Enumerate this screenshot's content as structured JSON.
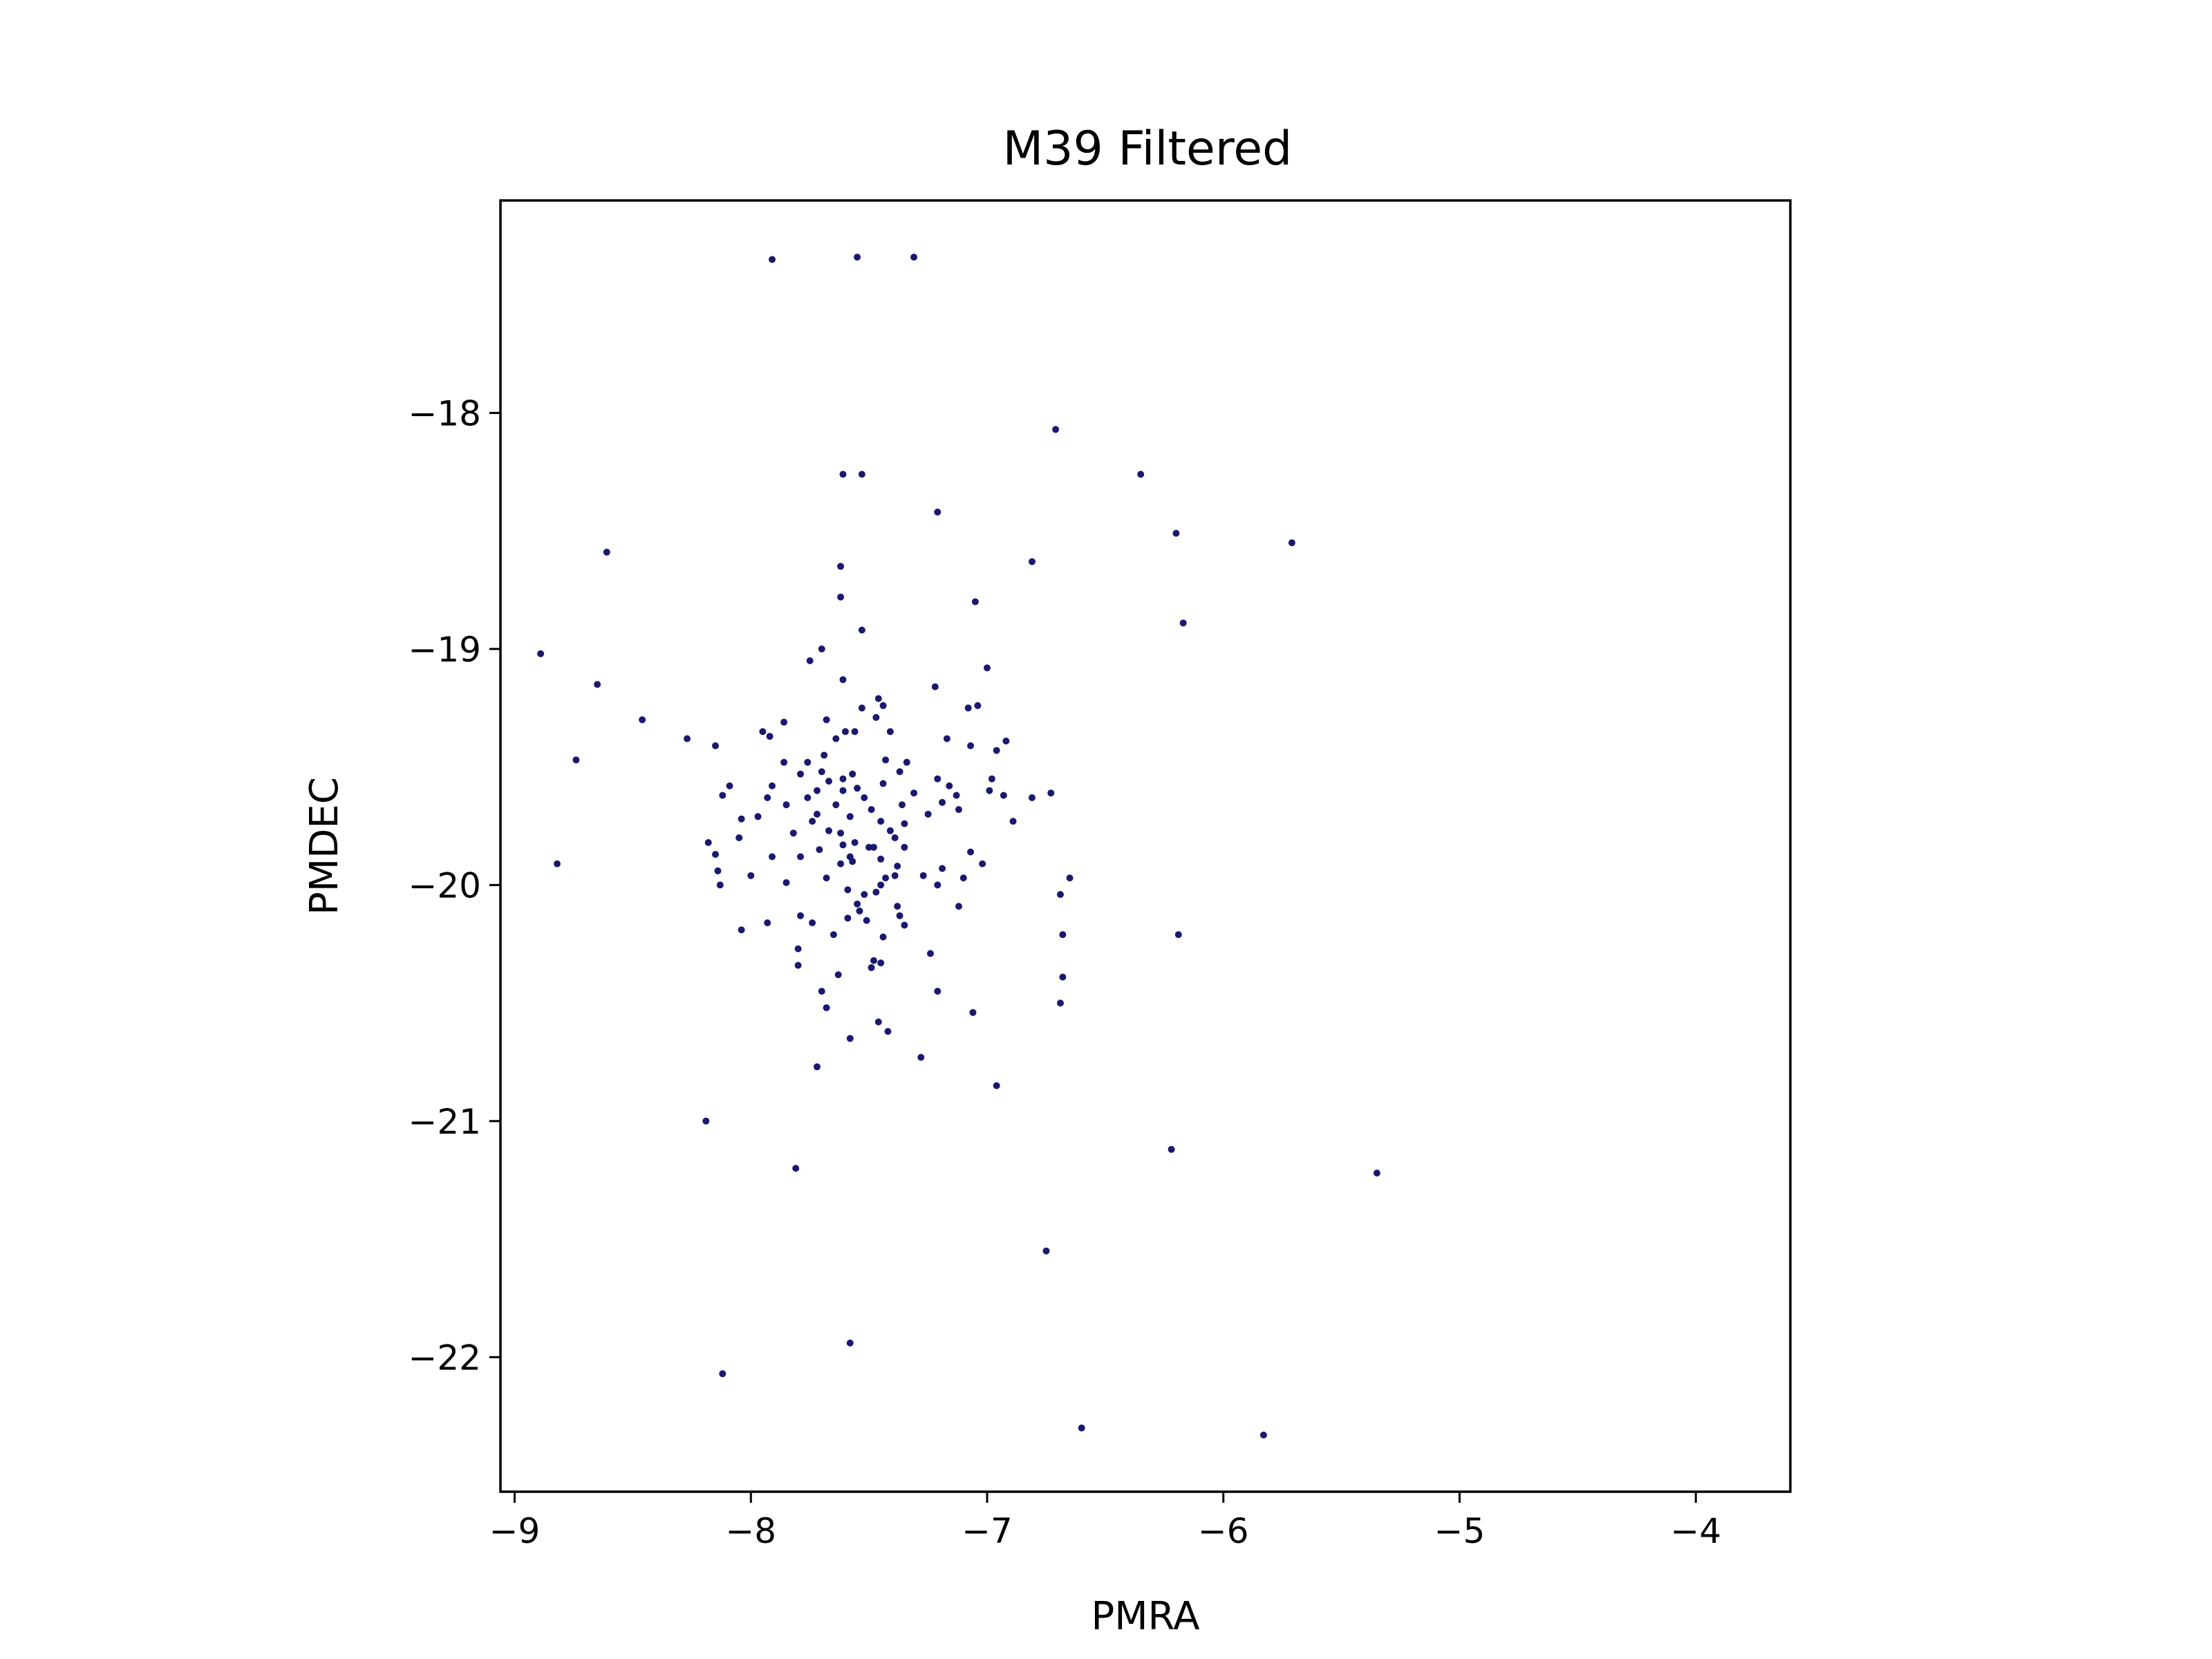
{
  "chart_data": {
    "type": "scatter",
    "title": "M39 Filtered",
    "xlabel": "PMRA",
    "ylabel": "PMDEC",
    "xlim": [
      -9.06,
      -3.6
    ],
    "ylim": [
      -22.57,
      -17.1
    ],
    "xticks": [
      -9,
      -8,
      -7,
      -6,
      -5,
      -4
    ],
    "yticks": [
      -18,
      -19,
      -20,
      -21,
      -22
    ],
    "xtick_labels": [
      "−9",
      "−8",
      "−7",
      "−6",
      "−5",
      "−4"
    ],
    "ytick_labels": [
      "−18",
      "−19",
      "−20",
      "−21",
      "−22"
    ],
    "grid": false,
    "marker_color": "#191970",
    "points": [
      [
        -7.91,
        -17.35
      ],
      [
        -7.55,
        -17.34
      ],
      [
        -7.31,
        -17.34
      ],
      [
        -6.71,
        -18.07
      ],
      [
        -6.35,
        -18.26
      ],
      [
        -7.61,
        -18.26
      ],
      [
        -7.53,
        -18.26
      ],
      [
        -7.21,
        -18.42
      ],
      [
        -6.2,
        -18.51
      ],
      [
        -5.71,
        -18.55
      ],
      [
        -8.61,
        -18.59
      ],
      [
        -6.81,
        -18.63
      ],
      [
        -7.62,
        -18.65
      ],
      [
        -7.62,
        -18.78
      ],
      [
        -7.05,
        -18.8
      ],
      [
        -6.17,
        -18.89
      ],
      [
        -7.53,
        -18.92
      ],
      [
        -8.89,
        -19.02
      ],
      [
        -7.7,
        -19.0
      ],
      [
        -7.75,
        -19.05
      ],
      [
        -7.0,
        -19.08
      ],
      [
        -7.61,
        -19.13
      ],
      [
        -8.65,
        -19.15
      ],
      [
        -7.22,
        -19.16
      ],
      [
        -7.46,
        -19.21
      ],
      [
        -7.08,
        -19.25
      ],
      [
        -7.04,
        -19.24
      ],
      [
        -7.53,
        -19.25
      ],
      [
        -7.44,
        -19.24
      ],
      [
        -8.46,
        -19.3
      ],
      [
        -7.68,
        -19.3
      ],
      [
        -7.47,
        -19.29
      ],
      [
        -7.86,
        -19.31
      ],
      [
        -7.6,
        -19.35
      ],
      [
        -7.95,
        -19.35
      ],
      [
        -7.56,
        -19.35
      ],
      [
        -7.41,
        -19.35
      ],
      [
        -8.27,
        -19.38
      ],
      [
        -7.92,
        -19.37
      ],
      [
        -7.64,
        -19.38
      ],
      [
        -6.92,
        -19.39
      ],
      [
        -7.17,
        -19.38
      ],
      [
        -8.15,
        -19.41
      ],
      [
        -7.07,
        -19.41
      ],
      [
        -7.69,
        -19.45
      ],
      [
        -8.74,
        -19.47
      ],
      [
        -6.96,
        -19.43
      ],
      [
        -7.34,
        -19.48
      ],
      [
        -7.43,
        -19.47
      ],
      [
        -7.76,
        -19.48
      ],
      [
        -7.86,
        -19.48
      ],
      [
        -7.37,
        -19.52
      ],
      [
        -7.7,
        -19.52
      ],
      [
        -7.57,
        -19.53
      ],
      [
        -7.79,
        -19.53
      ],
      [
        -7.61,
        -19.55
      ],
      [
        -7.21,
        -19.55
      ],
      [
        -6.98,
        -19.55
      ],
      [
        -7.44,
        -19.57
      ],
      [
        -7.67,
        -19.56
      ],
      [
        -7.91,
        -19.58
      ],
      [
        -7.16,
        -19.58
      ],
      [
        -8.09,
        -19.58
      ],
      [
        -7.55,
        -19.59
      ],
      [
        -7.72,
        -19.6
      ],
      [
        -7.61,
        -19.6
      ],
      [
        -6.99,
        -19.6
      ],
      [
        -6.93,
        -19.62
      ],
      [
        -7.13,
        -19.62
      ],
      [
        -8.12,
        -19.62
      ],
      [
        -7.31,
        -19.61
      ],
      [
        -7.76,
        -19.63
      ],
      [
        -6.73,
        -19.61
      ],
      [
        -7.52,
        -19.63
      ],
      [
        -7.93,
        -19.63
      ],
      [
        -6.81,
        -19.63
      ],
      [
        -7.19,
        -19.65
      ],
      [
        -7.64,
        -19.66
      ],
      [
        -7.85,
        -19.66
      ],
      [
        -7.36,
        -19.66
      ],
      [
        -7.49,
        -19.68
      ],
      [
        -7.12,
        -19.68
      ],
      [
        -7.25,
        -19.7
      ],
      [
        -7.72,
        -19.7
      ],
      [
        -7.58,
        -19.71
      ],
      [
        -7.97,
        -19.71
      ],
      [
        -8.04,
        -19.72
      ],
      [
        -6.89,
        -19.73
      ],
      [
        -7.74,
        -19.73
      ],
      [
        -7.45,
        -19.73
      ],
      [
        -7.35,
        -19.74
      ],
      [
        -7.67,
        -19.77
      ],
      [
        -7.41,
        -19.77
      ],
      [
        -7.82,
        -19.78
      ],
      [
        -7.62,
        -19.78
      ],
      [
        -8.05,
        -19.8
      ],
      [
        -7.39,
        -19.8
      ],
      [
        -7.56,
        -19.82
      ],
      [
        -8.18,
        -19.82
      ],
      [
        -7.61,
        -19.83
      ],
      [
        -7.5,
        -19.84
      ],
      [
        -7.48,
        -19.84
      ],
      [
        -7.35,
        -19.84
      ],
      [
        -7.71,
        -19.85
      ],
      [
        -7.07,
        -19.86
      ],
      [
        -8.15,
        -19.87
      ],
      [
        -7.58,
        -19.88
      ],
      [
        -7.91,
        -19.88
      ],
      [
        -7.79,
        -19.88
      ],
      [
        -7.45,
        -19.89
      ],
      [
        -7.57,
        -19.9
      ],
      [
        -7.62,
        -19.91
      ],
      [
        -7.02,
        -19.91
      ],
      [
        -8.82,
        -19.91
      ],
      [
        -7.38,
        -19.92
      ],
      [
        -7.19,
        -19.93
      ],
      [
        -8.14,
        -19.94
      ],
      [
        -7.27,
        -19.96
      ],
      [
        -7.39,
        -19.96
      ],
      [
        -7.43,
        -19.97
      ],
      [
        -7.68,
        -19.97
      ],
      [
        -8.0,
        -19.96
      ],
      [
        -7.1,
        -19.97
      ],
      [
        -7.85,
        -19.99
      ],
      [
        -7.45,
        -20.0
      ],
      [
        -8.13,
        -20.0
      ],
      [
        -6.65,
        -19.97
      ],
      [
        -7.21,
        -20.0
      ],
      [
        -7.59,
        -20.02
      ],
      [
        -7.47,
        -20.03
      ],
      [
        -7.52,
        -20.04
      ],
      [
        -6.69,
        -20.04
      ],
      [
        -7.55,
        -20.08
      ],
      [
        -7.38,
        -20.09
      ],
      [
        -7.12,
        -20.09
      ],
      [
        -7.54,
        -20.11
      ],
      [
        -7.79,
        -20.13
      ],
      [
        -7.37,
        -20.13
      ],
      [
        -7.59,
        -20.14
      ],
      [
        -7.93,
        -20.16
      ],
      [
        -7.51,
        -20.15
      ],
      [
        -7.74,
        -20.16
      ],
      [
        -8.04,
        -20.19
      ],
      [
        -6.19,
        -20.21
      ],
      [
        -7.35,
        -20.17
      ],
      [
        -6.68,
        -20.21
      ],
      [
        -7.65,
        -20.21
      ],
      [
        -7.44,
        -20.22
      ],
      [
        -7.8,
        -20.27
      ],
      [
        -7.24,
        -20.29
      ],
      [
        -7.48,
        -20.32
      ],
      [
        -7.45,
        -20.33
      ],
      [
        -7.8,
        -20.34
      ],
      [
        -7.49,
        -20.35
      ],
      [
        -7.63,
        -20.38
      ],
      [
        -6.68,
        -20.39
      ],
      [
        -7.7,
        -20.45
      ],
      [
        -7.21,
        -20.45
      ],
      [
        -6.69,
        -20.5
      ],
      [
        -7.68,
        -20.52
      ],
      [
        -7.06,
        -20.54
      ],
      [
        -7.46,
        -20.58
      ],
      [
        -7.42,
        -20.62
      ],
      [
        -7.58,
        -20.65
      ],
      [
        -7.28,
        -20.73
      ],
      [
        -7.72,
        -20.77
      ],
      [
        -6.96,
        -20.85
      ],
      [
        -8.19,
        -21.0
      ],
      [
        -6.22,
        -21.12
      ],
      [
        -7.81,
        -21.2
      ],
      [
        -5.35,
        -21.22
      ],
      [
        -6.75,
        -21.55
      ],
      [
        -7.58,
        -21.94
      ],
      [
        -8.12,
        -22.07
      ],
      [
        -6.6,
        -22.3
      ],
      [
        -5.83,
        -22.33
      ]
    ]
  }
}
